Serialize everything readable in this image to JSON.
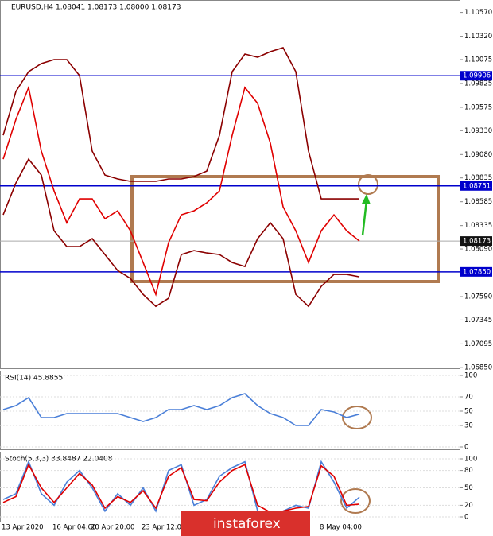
{
  "chart_data": [
    {
      "type": "line",
      "title": "EURUSD,H4 1.08041 1.08173 1.08000 1.08173",
      "categories": [
        "13 Apr 2020",
        null,
        null,
        null,
        "16 Apr 04:00",
        null,
        null,
        "20 Apr 20:00",
        null,
        null,
        null,
        "23 Apr 12:00",
        null,
        null,
        null,
        null,
        null,
        null,
        null,
        null,
        null,
        null,
        null,
        null,
        null,
        "8 May 04:00",
        null,
        null,
        null
      ],
      "series": [
        {
          "color": "#e00000",
          "values": [
            1.09032,
            1.09449,
            1.09783,
            1.09115,
            1.08698,
            1.08365,
            1.08615,
            1.08615,
            1.08407,
            1.0849,
            1.08281,
            1.07948,
            1.07614,
            1.08156,
            1.08448,
            1.0849,
            1.08573,
            1.08698,
            1.09282,
            1.09783,
            1.09616,
            1.09199,
            1.08532,
            1.08281,
            1.07948,
            1.08281,
            1.08448,
            1.08281,
            1.08173
          ]
        },
        {
          "color": "#8b0000",
          "values": [
            1.09282,
            1.09741,
            1.09949,
            1.10033,
            1.10075,
            1.10075,
            1.09908,
            1.09115,
            1.08865,
            1.08824,
            1.08799,
            1.08799,
            1.08799,
            1.08824,
            1.08824,
            1.08849,
            1.08907,
            1.09282,
            1.09949,
            1.10133,
            1.101,
            1.10158,
            1.102,
            1.09949,
            1.09115,
            1.08615,
            1.08615,
            1.08615,
            1.08615
          ]
        },
        {
          "color": "#8b0000",
          "values": [
            1.08448,
            1.08782,
            1.09032,
            1.08865,
            1.08281,
            1.08115,
            1.08115,
            1.08198,
            1.08031,
            1.07864,
            1.07781,
            1.07614,
            1.07489,
            1.07573,
            1.08031,
            1.08073,
            1.08048,
            1.08031,
            1.07948,
            1.07906,
            1.08198,
            1.08365,
            1.08198,
            1.07614,
            1.07489,
            1.07698,
            1.07823,
            1.07823,
            1.07798
          ]
        }
      ],
      "ylim": [
        1.0684,
        1.107
      ],
      "yticks": [
        {
          "value": 1.1057,
          "label": "1.10570"
        },
        {
          "value": 1.1032,
          "label": "1.10320"
        },
        {
          "value": 1.10075,
          "label": "1.10075"
        },
        {
          "value": 1.09825,
          "label": "1.09825"
        },
        {
          "value": 1.09575,
          "label": "1.09575"
        },
        {
          "value": 1.0933,
          "label": "1.09330"
        },
        {
          "value": 1.0908,
          "label": "1.09080"
        },
        {
          "value": 1.08835,
          "label": "1.08835"
        },
        {
          "value": 1.08585,
          "label": "1.08585"
        },
        {
          "value": 1.08335,
          "label": "1.08335"
        },
        {
          "value": 1.0809,
          "label": "1.08090"
        },
        {
          "value": 1.0759,
          "label": "1.07590"
        },
        {
          "value": 1.07345,
          "label": "1.07345"
        },
        {
          "value": 1.07095,
          "label": "1.07095"
        },
        {
          "value": 1.0685,
          "label": "1.06850"
        }
      ],
      "levels": [
        1.09906,
        {
          "value": 1.08751,
          "label": "1.08751"
        },
        {
          "value": 1.0785,
          "label": "1.07850"
        }
      ],
      "level_color": "#0000cc",
      "current_price": 1.08173,
      "watermark": "instaforex"
    },
    {
      "type": "line",
      "title": "RSI(14) 45.8855",
      "series": [
        {
          "color": "#4a7fd8",
          "values": [
            52.2,
            57.8,
            68.9,
            41.1,
            41.1,
            46.7,
            46.7,
            46.7,
            46.7,
            46.7,
            41.1,
            35.6,
            41.1,
            52.2,
            52.2,
            57.8,
            52.2,
            57.8,
            68.9,
            74.4,
            57.8,
            46.7,
            41.1,
            30,
            30,
            52.2,
            48.9,
            41.1,
            45.9
          ]
        }
      ],
      "ylim": [
        0,
        100
      ],
      "yticks": [
        100,
        70,
        50,
        30,
        0
      ]
    },
    {
      "type": "line",
      "title": "Stoch(5,3,3) 33.8487 22.0408",
      "series": [
        {
          "color": "#4a7fd8",
          "values": [
            30,
            40,
            95,
            40,
            20,
            60,
            80,
            50,
            10,
            40,
            20,
            50,
            10,
            80,
            90,
            20,
            30,
            70,
            85,
            95,
            10,
            5,
            10,
            20,
            15,
            95,
            60,
            15,
            34
          ]
        },
        {
          "color": "#e00000",
          "values": [
            25,
            35,
            90,
            50,
            25,
            50,
            75,
            55,
            15,
            35,
            25,
            45,
            15,
            70,
            85,
            30,
            28,
            60,
            80,
            90,
            20,
            8,
            10,
            15,
            18,
            88,
            70,
            20,
            22
          ]
        }
      ],
      "ylim": [
        0,
        100
      ],
      "yticks": [
        100,
        80,
        50,
        20,
        0
      ]
    }
  ]
}
